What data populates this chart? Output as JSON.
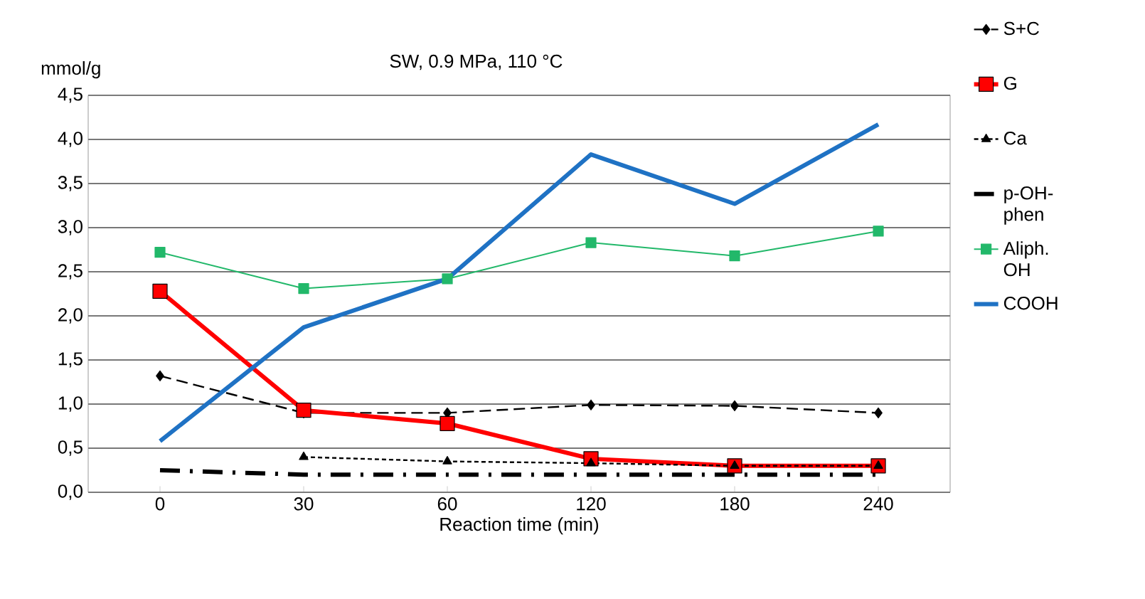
{
  "chart_data": {
    "type": "line",
    "title": "SW, 0.9 MPa,  110 °C",
    "xlabel": "Reaction time (min)",
    "ylabel": "mmol/g",
    "categories": [
      "0",
      "30",
      "60",
      "120",
      "180",
      "240"
    ],
    "ylim": [
      0,
      4.5
    ],
    "yticks": [
      {
        "value": 0,
        "label": "0,0"
      },
      {
        "value": 0.5,
        "label": "0,5"
      },
      {
        "value": 1,
        "label": "1,0"
      },
      {
        "value": 1.5,
        "label": "1,5"
      },
      {
        "value": 2,
        "label": "2,0"
      },
      {
        "value": 2.5,
        "label": "2,5"
      },
      {
        "value": 3,
        "label": "3,0"
      },
      {
        "value": 3.5,
        "label": "3,5"
      },
      {
        "value": 4,
        "label": "4,0"
      },
      {
        "value": 4.5,
        "label": "4,5"
      }
    ],
    "grid": "y",
    "legend": "right",
    "series": [
      {
        "name": "S+C",
        "color": "#000000",
        "marker": "diamond",
        "line_style": "dashed",
        "values": [
          1.32,
          0.9,
          0.9,
          0.99,
          0.98,
          0.9
        ]
      },
      {
        "name": "G",
        "color": "#ff0000",
        "marker": "square",
        "line_style": "solid",
        "values": [
          2.28,
          0.93,
          0.78,
          0.38,
          0.3,
          0.3
        ]
      },
      {
        "name": "Ca",
        "color": "#000000",
        "marker": "triangle",
        "line_style": "dotted",
        "values": [
          null,
          0.4,
          0.35,
          0.33,
          0.3,
          0.3
        ]
      },
      {
        "name": "p-OH-phen",
        "color": "#000000",
        "marker": "none",
        "line_style": "dashdot",
        "values": [
          0.25,
          0.2,
          0.2,
          0.2,
          0.2,
          0.2
        ]
      },
      {
        "name": "Aliph. OH",
        "color": "#22b86a",
        "marker": "square",
        "line_style": "solid",
        "values": [
          2.72,
          2.31,
          2.42,
          2.83,
          2.68,
          2.96
        ]
      },
      {
        "name": "COOH",
        "color": "#1f72c4",
        "marker": "none",
        "line_style": "solid",
        "values": [
          0.58,
          1.87,
          2.42,
          3.83,
          3.27,
          4.17
        ]
      }
    ]
  }
}
